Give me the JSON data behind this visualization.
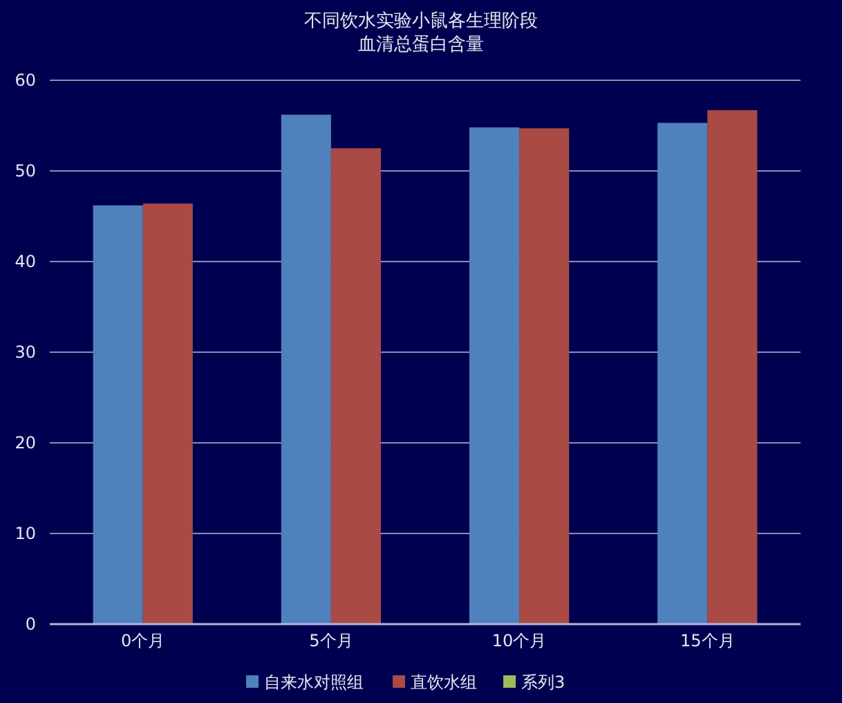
{
  "chart_data": {
    "type": "bar",
    "title": "不同饮水实验小鼠各生理阶段血清总蛋白含量",
    "categories": [
      "0个月",
      "5个月",
      "10个月",
      "15个月"
    ],
    "series": [
      {
        "name": "自来水对照组",
        "color": "#4f81bd",
        "values": [
          46.2,
          56.2,
          54.8,
          55.3
        ]
      },
      {
        "name": "直饮水组",
        "color": "#a94a45",
        "values": [
          46.4,
          52.5,
          54.7,
          56.7
        ]
      },
      {
        "name": "系列3",
        "color": "#9bbb59",
        "values": [
          null,
          null,
          null,
          null
        ]
      }
    ],
    "ylim": [
      0,
      60
    ],
    "yticks": [
      0,
      10,
      20,
      30,
      40,
      50,
      60
    ],
    "grid": "y",
    "legend": "bottom"
  }
}
